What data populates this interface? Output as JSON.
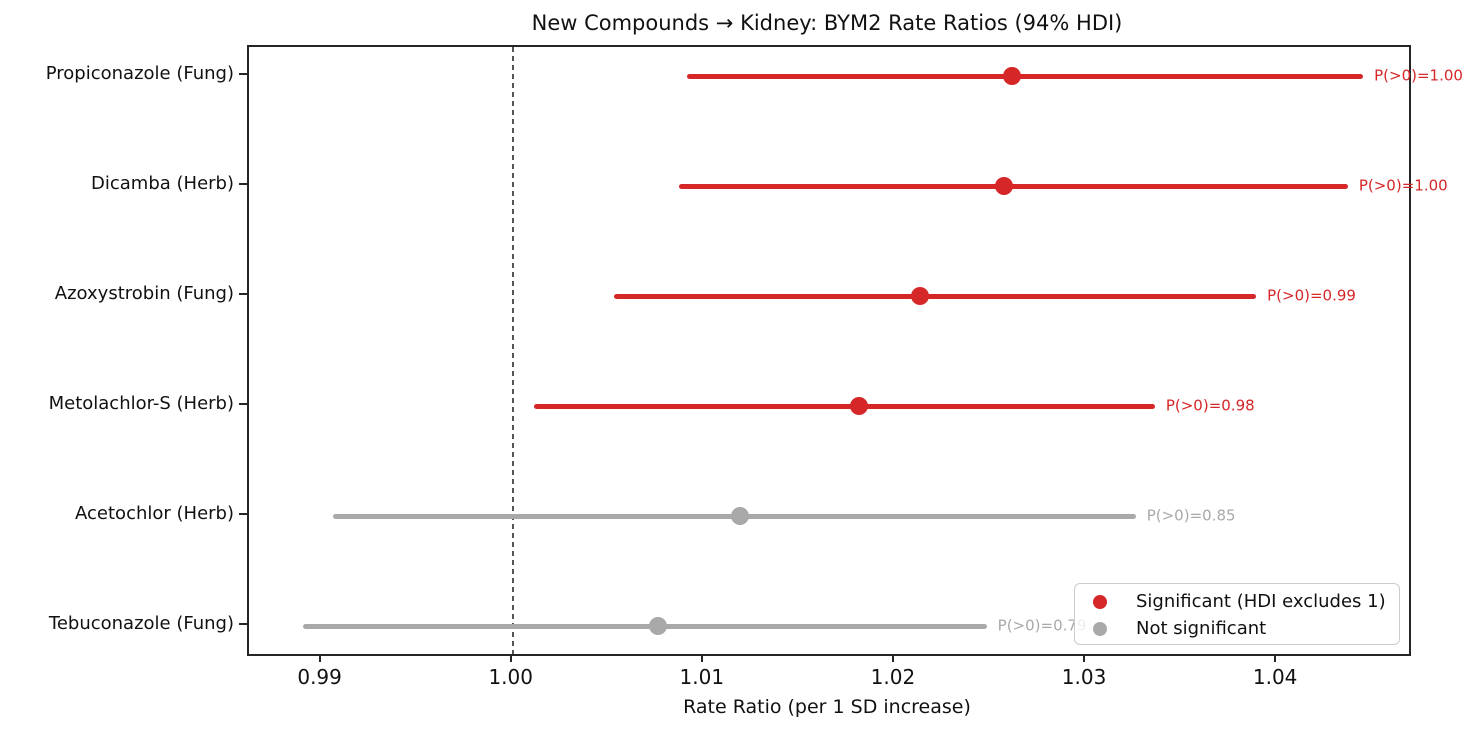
{
  "chart_data": {
    "type": "scatter",
    "variant": "forest-plot-with-error-bars",
    "title": "New Compounds → Kidney: BYM2 Rate Ratios (94% HDI)",
    "xlabel": "Rate Ratio (per 1 SD increase)",
    "xlim": [
      0.9862,
      1.0469
    ],
    "x_ticks": [
      {
        "value": 0.99,
        "label": "0.99"
      },
      {
        "value": 1.0,
        "label": "1.00"
      },
      {
        "value": 1.01,
        "label": "1.01"
      },
      {
        "value": 1.02,
        "label": "1.02"
      },
      {
        "value": 1.03,
        "label": "1.03"
      },
      {
        "value": 1.04,
        "label": "1.04"
      }
    ],
    "reference_line": 1.0,
    "grid": false,
    "legend_position": "lower right",
    "rows": [
      {
        "label": "Propiconazole (Fung)",
        "mid": 1.0261,
        "lo": 1.0091,
        "hi": 1.0445,
        "p_label": "P(>0)=1.00",
        "significant": true
      },
      {
        "label": "Dicamba (Herb)",
        "mid": 1.0257,
        "lo": 1.0087,
        "hi": 1.0437,
        "p_label": "P(>0)=1.00",
        "significant": true
      },
      {
        "label": "Azoxystrobin (Fung)",
        "mid": 1.0213,
        "lo": 1.0053,
        "hi": 1.0389,
        "p_label": "P(>0)=0.99",
        "significant": true
      },
      {
        "label": "Metolachlor-S (Herb)",
        "mid": 1.0181,
        "lo": 1.0011,
        "hi": 1.0336,
        "p_label": "P(>0)=0.98",
        "significant": true
      },
      {
        "label": "Acetochlor (Herb)",
        "mid": 1.0119,
        "lo": 0.9906,
        "hi": 1.0326,
        "p_label": "P(>0)=0.85",
        "significant": false
      },
      {
        "label": "Tebuconazole (Fung)",
        "mid": 1.0076,
        "lo": 0.989,
        "hi": 1.0248,
        "p_label": "P(>0)=0.79",
        "significant": false
      }
    ],
    "legend": [
      {
        "label": "Significant (HDI excludes 1)",
        "color": "#d62728"
      },
      {
        "label": "Not significant",
        "color": "#a9a9a9"
      }
    ],
    "colors": {
      "significant": "#d62728",
      "not_significant": "#a9a9a9",
      "reference_line": "#555555",
      "axis": "#252525"
    }
  }
}
